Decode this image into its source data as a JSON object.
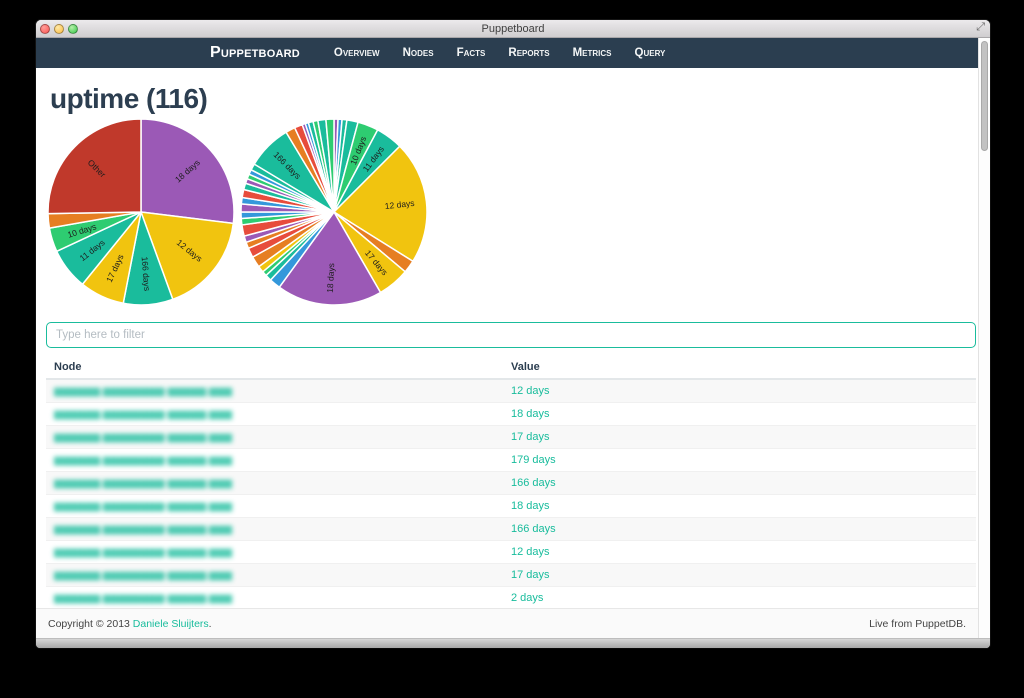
{
  "window": {
    "title": "Puppetboard",
    "controls": {
      "close": "close",
      "minimize": "minimize",
      "zoom": "zoom"
    },
    "resize_glyph": "⤢"
  },
  "navbar": {
    "brand": "Puppetboard",
    "items": [
      {
        "label": "Overview"
      },
      {
        "label": "Nodes"
      },
      {
        "label": "Facts"
      },
      {
        "label": "Reports"
      },
      {
        "label": "Metrics"
      },
      {
        "label": "Query"
      }
    ],
    "bg_color": "#2b3e50"
  },
  "page": {
    "heading": "uptime (116)"
  },
  "filter": {
    "placeholder": "Type here to filter",
    "value": ""
  },
  "table": {
    "columns": [
      "Node",
      "Value"
    ],
    "nodes_redacted": true,
    "node_masked_text": "▆▆▆▆▆▆.▆▆▆▆▆▆▆▆-▆▆▆▆▆.▆▆▆",
    "rows": [
      {
        "value": "12 days"
      },
      {
        "value": "18 days"
      },
      {
        "value": "17 days"
      },
      {
        "value": "179 days"
      },
      {
        "value": "166 days"
      },
      {
        "value": "18 days"
      },
      {
        "value": "166 days"
      },
      {
        "value": "12 days"
      },
      {
        "value": "17 days"
      },
      {
        "value": "2 days"
      }
    ]
  },
  "footer": {
    "copyright_prefix": "Copyright © 2013 ",
    "author_link": "Daniele Sluijters",
    "copyright_suffix": ".",
    "right_text": "Live from PuppetDB."
  },
  "colors": {
    "accent_teal": "#18bc9c",
    "navbar": "#2b3e50",
    "heading": "#2c3e50",
    "stripe": "#f8f8f8"
  },
  "chart_data": [
    {
      "type": "pie",
      "name": "uptime-grouped",
      "units": "degrees",
      "legend_position": "none",
      "slices": [
        {
          "label": "18 days",
          "color": "#9b59b6",
          "degrees": 97
        },
        {
          "label": "12 days",
          "color": "#f1c40f",
          "degrees": 63
        },
        {
          "label": "166 days",
          "color": "#1abc9c",
          "degrees": 31
        },
        {
          "label": "17 days",
          "color": "#f1c40f",
          "degrees": 28
        },
        {
          "label": "11 days",
          "color": "#1abc9c",
          "degrees": 26
        },
        {
          "label": "10 days",
          "color": "#2ecc71",
          "degrees": 15
        },
        {
          "label": "",
          "color": "#e67e22",
          "degrees": 9
        },
        {
          "label": "Other",
          "color": "#c0392b",
          "degrees": 91
        }
      ]
    },
    {
      "type": "pie",
      "name": "uptime-all-values",
      "units": "degrees",
      "legend_position": "none",
      "slices": [
        {
          "label": "",
          "color": "#9b59b6",
          "degrees": 2.5
        },
        {
          "label": "",
          "color": "#3498db",
          "degrees": 2.5
        },
        {
          "label": "",
          "color": "#1abc9c",
          "degrees": 3
        },
        {
          "label": "",
          "color": "#1abc9c",
          "degrees": 7
        },
        {
          "label": "10 days",
          "color": "#2ecc71",
          "degrees": 13
        },
        {
          "label": "11 days",
          "color": "#1abc9c",
          "degrees": 17
        },
        {
          "label": "12 days",
          "color": "#f1c40f",
          "degrees": 77
        },
        {
          "label": "",
          "color": "#e67e22",
          "degrees": 8
        },
        {
          "label": "17 days",
          "color": "#f1c40f",
          "degrees": 20
        },
        {
          "label": "18 days",
          "color": "#9b59b6",
          "degrees": 66
        },
        {
          "label": "",
          "color": "#3498db",
          "degrees": 7
        },
        {
          "label": "",
          "color": "#1abc9c",
          "degrees": 4
        },
        {
          "label": "",
          "color": "#2ecc71",
          "degrees": 3
        },
        {
          "label": "",
          "color": "#f1c40f",
          "degrees": 4
        },
        {
          "label": "",
          "color": "#e67e22",
          "degrees": 7
        },
        {
          "label": "",
          "color": "#e74c3c",
          "degrees": 6
        },
        {
          "label": "",
          "color": "#e67e22",
          "degrees": 4
        },
        {
          "label": "",
          "color": "#9b59b6",
          "degrees": 4
        },
        {
          "label": "",
          "color": "#e74c3c",
          "degrees": 7
        },
        {
          "label": "",
          "color": "#2ecc71",
          "degrees": 4
        },
        {
          "label": "",
          "color": "#3498db",
          "degrees": 4
        },
        {
          "label": "",
          "color": "#9b59b6",
          "degrees": 5
        },
        {
          "label": "",
          "color": "#3498db",
          "degrees": 4
        },
        {
          "label": "",
          "color": "#e74c3c",
          "degrees": 5
        },
        {
          "label": "",
          "color": "#1abc9c",
          "degrees": 4
        },
        {
          "label": "",
          "color": "#9b59b6",
          "degrees": 3
        },
        {
          "label": "",
          "color": "#2ecc71",
          "degrees": 3
        },
        {
          "label": "",
          "color": "#3498db",
          "degrees": 3
        },
        {
          "label": "",
          "color": "#1abc9c",
          "degrees": 4
        },
        {
          "label": "166 days",
          "color": "#1abc9c",
          "degrees": 28
        },
        {
          "label": "",
          "color": "#e67e22",
          "degrees": 6
        },
        {
          "label": "",
          "color": "#e74c3c",
          "degrees": 5
        },
        {
          "label": "",
          "color": "#9b59b6",
          "degrees": 2
        },
        {
          "label": "",
          "color": "#3498db",
          "degrees": 2
        },
        {
          "label": "",
          "color": "#1abc9c",
          "degrees": 3
        },
        {
          "label": "",
          "color": "#2ecc71",
          "degrees": 3
        },
        {
          "label": "",
          "color": "#1abc9c",
          "degrees": 5
        },
        {
          "label": "",
          "color": "#2ecc71",
          "degrees": 5
        }
      ]
    }
  ]
}
